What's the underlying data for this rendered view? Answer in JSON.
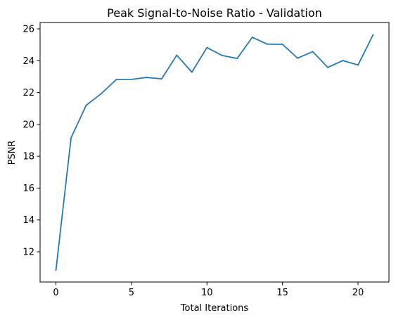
{
  "chart_data": {
    "type": "line",
    "title": "Peak Signal-to-Noise Ratio - Validation",
    "xlabel": "Total Iterations",
    "ylabel": "PSNR",
    "xlim": [
      -1.05,
      22.05
    ],
    "ylim": [
      10.1,
      26.4
    ],
    "xticks": [
      0,
      5,
      10,
      15,
      20
    ],
    "yticks": [
      12,
      14,
      16,
      18,
      20,
      22,
      24,
      26
    ],
    "grid": false,
    "series": [
      {
        "color": "#1f77b4",
        "x": [
          0,
          1,
          2,
          3,
          4,
          5,
          6,
          7,
          8,
          9,
          10,
          11,
          12,
          13,
          14,
          15,
          16,
          17,
          18,
          19,
          20,
          21
        ],
        "y": [
          10.85,
          19.15,
          21.2,
          21.93,
          22.82,
          22.83,
          22.95,
          22.86,
          24.35,
          23.28,
          24.83,
          24.33,
          24.14,
          25.47,
          25.04,
          25.03,
          24.16,
          24.57,
          23.58,
          24.01,
          23.73,
          25.63
        ]
      }
    ]
  }
}
